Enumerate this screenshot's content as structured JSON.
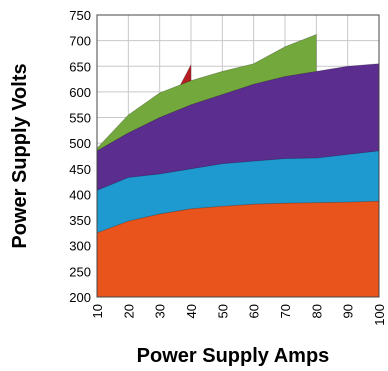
{
  "chart_data": {
    "type": "area",
    "title": "",
    "xlabel": "Power Supply Amps",
    "ylabel": "Power Supply Volts",
    "x": [
      10,
      20,
      30,
      40,
      50,
      60,
      70,
      80,
      90,
      100
    ],
    "xlim": [
      10,
      100
    ],
    "ylim": [
      200,
      750
    ],
    "yticks": [
      200,
      250,
      300,
      350,
      400,
      450,
      500,
      550,
      600,
      650,
      700,
      750
    ],
    "xticks": [
      10,
      20,
      30,
      40,
      50,
      60,
      70,
      80,
      90,
      100
    ],
    "grid": true,
    "legend": "none",
    "series": [
      {
        "color": "#e8541c",
        "values": [
          325,
          348,
          362,
          372,
          377,
          381,
          383,
          384,
          385,
          387
        ]
      },
      {
        "color": "#1f9ad1",
        "values": [
          408,
          433,
          440,
          450,
          460,
          465,
          470,
          471,
          478,
          485
        ]
      },
      {
        "color": "#5b2d8e",
        "values": [
          485,
          520,
          550,
          575,
          595,
          615,
          630,
          640,
          650,
          655
        ]
      },
      {
        "color": "#73a83c",
        "x": [
          10,
          20,
          30,
          40,
          50,
          60,
          70,
          80
        ],
        "values": [
          490,
          555,
          598,
          622,
          640,
          655,
          688,
          712
        ]
      },
      {
        "color": "#b51f24",
        "x": [
          35,
          40
        ],
        "values": [
          595,
          653
        ]
      }
    ]
  }
}
